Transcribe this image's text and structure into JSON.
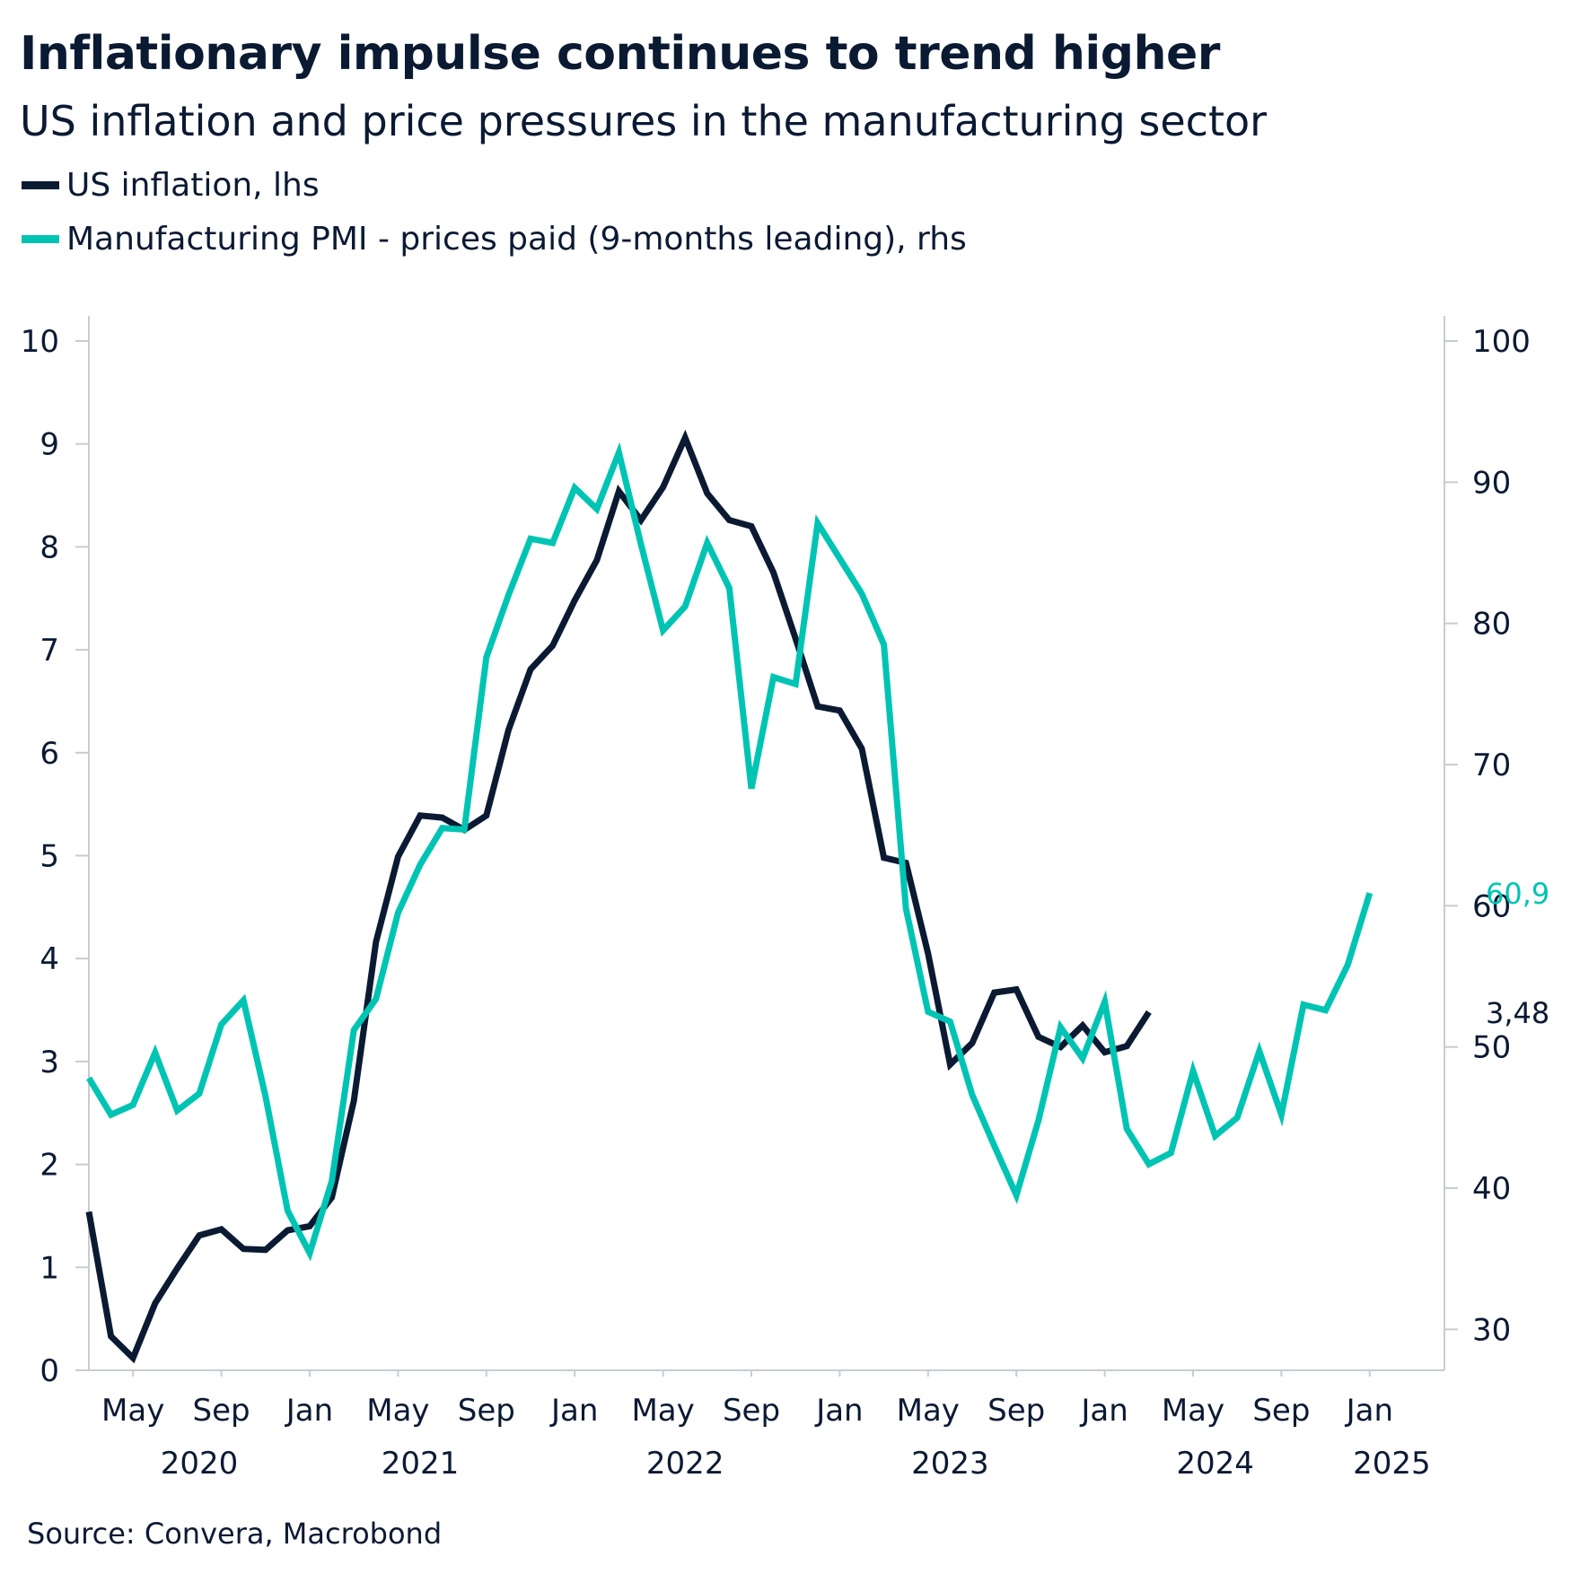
{
  "chart_data": {
    "type": "line",
    "title": "Inflationary impulse continues to trend higher",
    "subtitle": "US inflation and price pressures in the manufacturing sector",
    "source": "Source: Convera, Macrobond",
    "x_start": "2020-03",
    "x_end": "2025-03",
    "month_ticks": [
      {
        "label": "May",
        "date": "2020-05"
      },
      {
        "label": "Sep",
        "date": "2020-09"
      },
      {
        "label": "Jan",
        "date": "2021-01"
      },
      {
        "label": "May",
        "date": "2021-05"
      },
      {
        "label": "Sep",
        "date": "2021-09"
      },
      {
        "label": "Jan",
        "date": "2022-01"
      },
      {
        "label": "May",
        "date": "2022-05"
      },
      {
        "label": "Sep",
        "date": "2022-09"
      },
      {
        "label": "Jan",
        "date": "2023-01"
      },
      {
        "label": "May",
        "date": "2023-05"
      },
      {
        "label": "Sep",
        "date": "2023-09"
      },
      {
        "label": "Jan",
        "date": "2024-01"
      },
      {
        "label": "May",
        "date": "2024-05"
      },
      {
        "label": "Sep",
        "date": "2024-09"
      },
      {
        "label": "Jan",
        "date": "2025-01"
      }
    ],
    "year_labels": [
      {
        "label": "2020",
        "date": "2020-08"
      },
      {
        "label": "2021",
        "date": "2021-06"
      },
      {
        "label": "2022",
        "date": "2022-06"
      },
      {
        "label": "2023",
        "date": "2023-06"
      },
      {
        "label": "2024",
        "date": "2024-06"
      },
      {
        "label": "2025",
        "date": "2025-02"
      }
    ],
    "y_left": {
      "min": 0,
      "max": 10,
      "ticks": [
        "0",
        "1",
        "2",
        "3",
        "4",
        "5",
        "6",
        "7",
        "8",
        "9",
        "10"
      ]
    },
    "y_right": {
      "min": 27.1,
      "max": 100,
      "ticks": [
        "30",
        "40",
        "50",
        "60",
        "70",
        "80",
        "90",
        "100"
      ]
    },
    "series": [
      {
        "name": "US inflation, lhs",
        "axis": "left",
        "color": "#0b1a33",
        "start": "2020-03",
        "last_label": "3,48",
        "values": [
          1.54,
          0.33,
          0.12,
          0.65,
          0.99,
          1.31,
          1.37,
          1.18,
          1.17,
          1.36,
          1.4,
          1.68,
          2.62,
          4.16,
          4.99,
          5.39,
          5.37,
          5.25,
          5.39,
          6.22,
          6.81,
          7.04,
          7.48,
          7.87,
          8.54,
          8.26,
          8.58,
          9.06,
          8.52,
          8.26,
          8.2,
          7.75,
          7.11,
          6.45,
          6.41,
          6.04,
          4.98,
          4.93,
          4.05,
          2.97,
          3.18,
          3.67,
          3.7,
          3.24,
          3.14,
          3.35,
          3.09,
          3.15,
          3.48
        ]
      },
      {
        "name": "Manufacturing PMI - prices paid (9-months leading), rhs",
        "axis": "right",
        "color": "#00c4b3",
        "start": "2020-03",
        "last_label": "60,9",
        "values": [
          47.8,
          45.2,
          45.9,
          49.6,
          45.5,
          46.7,
          51.6,
          53.3,
          46.5,
          38.4,
          35.4,
          40.5,
          51.2,
          53.4,
          59.5,
          62.9,
          65.5,
          65.4,
          77.6,
          82.0,
          86.0,
          85.7,
          89.6,
          88.1,
          92.1,
          85.6,
          79.5,
          81.2,
          85.7,
          82.5,
          68.3,
          76.2,
          75.7,
          87.1,
          84.6,
          82.1,
          78.5,
          59.8,
          52.5,
          51.8,
          46.6,
          43.0,
          39.5,
          44.8,
          51.4,
          49.2,
          53.2,
          44.2,
          41.7,
          42.5,
          48.3,
          43.7,
          45.0,
          49.7,
          45.2,
          53.0,
          52.6,
          55.8,
          60.9
        ]
      }
    ]
  }
}
